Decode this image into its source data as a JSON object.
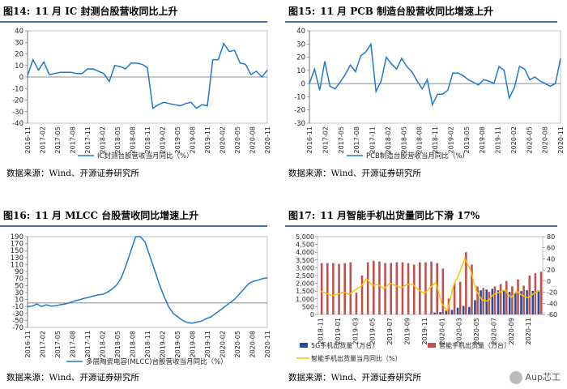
{
  "panels": [
    {
      "fig": "图14:",
      "title": "11 月 IC 封测台股营收同比上升",
      "source": "数据来源：Wind、开源证券研究所"
    },
    {
      "fig": "图15:",
      "title": "11 月 PCB 制造台股营收同比增速上升",
      "source": "数据来源：Wind、开源证券研究所"
    },
    {
      "fig": "图16:",
      "title": "11 月 MLCC 台股营收同比增速上升",
      "source": "数据来源：Wind、开源证券研究所"
    },
    {
      "fig": "图17:",
      "title": "11 月智能手机出货量同比下滑 17%",
      "source": "数据来源：Wind、开源证券研究所"
    }
  ],
  "watermark": "Aup芯工",
  "colors": {
    "blue": "#1f77d0",
    "red": "#c0504d",
    "yellow": "#ffc000",
    "navy": "#1f4e9c",
    "title_rule": "#4a6fa5"
  },
  "chart_data": [
    {
      "type": "line",
      "title": "11 月 IC 封测台股营收同比上升",
      "ylim": [
        -40,
        40
      ],
      "yticks": [
        -40,
        -30,
        -20,
        -10,
        0,
        10,
        20,
        30,
        40
      ],
      "xticks": [
        "2016-11",
        "2017-02",
        "2017-05",
        "2017-08",
        "2017-11",
        "2018-02",
        "2018-05",
        "2018-08",
        "2018-11",
        "2019-02",
        "2019-05",
        "2019-08",
        "2019-11",
        "2020-02",
        "2020-05",
        "2020-08",
        "2020-11"
      ],
      "series": [
        {
          "name": "IC封测台股营收当月同比（%）",
          "values": [
            1,
            15,
            6,
            13,
            2,
            3,
            4,
            4,
            4,
            3,
            3,
            7,
            7,
            5,
            3,
            -4,
            10,
            9,
            7,
            12,
            12,
            11,
            8,
            -27,
            -24,
            -22,
            -23,
            -24,
            -25,
            -23,
            -22,
            -27,
            -24,
            -25,
            15,
            15,
            29,
            22,
            23,
            12,
            11,
            2,
            5,
            0,
            6
          ]
        }
      ]
    },
    {
      "type": "line",
      "title": "11 月 PCB 制造台股营收同比增速上升",
      "ylim": [
        -30,
        40
      ],
      "yticks": [
        -30,
        -20,
        -10,
        0,
        10,
        20,
        30,
        40
      ],
      "xticks": [
        "2016-11",
        "2017-02",
        "2017-05",
        "2017-08",
        "2017-11",
        "2018-02",
        "2018-05",
        "2018-08",
        "2018-11",
        "2019-02",
        "2019-05",
        "2019-08",
        "2019-11",
        "2020-02",
        "2020-05",
        "2020-08",
        "2020-11"
      ],
      "series": [
        {
          "name": "PCB制造台股营收当月同比（%）",
          "values": [
            0,
            11,
            -5,
            17,
            -2,
            -4,
            1,
            7,
            14,
            9,
            21,
            24,
            30,
            -6,
            2,
            20,
            15,
            11,
            19,
            13,
            9,
            2,
            -4,
            3,
            -16,
            -8,
            -8,
            -5,
            8,
            8,
            6,
            3,
            1,
            -1,
            3,
            2,
            0,
            13,
            10,
            -11,
            -3,
            13,
            11,
            3,
            5,
            2,
            0,
            -2,
            0,
            19
          ]
        }
      ]
    },
    {
      "type": "line",
      "title": "11 月 MLCC 台股营收同比增速上升",
      "ylim": [
        -70,
        190
      ],
      "yticks": [
        -70,
        -50,
        -30,
        -10,
        10,
        30,
        50,
        70,
        90,
        110,
        130,
        150,
        170,
        190
      ],
      "xticks": [
        "2016-11",
        "2017-02",
        "2017-05",
        "2017-08",
        "2017-11",
        "2018-02",
        "2018-05",
        "2018-08",
        "2018-11",
        "2019-02",
        "2019-05",
        "2019-08",
        "2019-11",
        "2020-02",
        "2020-05",
        "2020-08",
        "2020-11"
      ],
      "series": [
        {
          "name": "多层陶瓷电容(MLCC)台股营收当月同比（%）",
          "values": [
            -10,
            -9,
            -3,
            -10,
            -5,
            -9,
            -8,
            -5,
            -3,
            1,
            6,
            9,
            13,
            16,
            20,
            23,
            25,
            31,
            40,
            52,
            74,
            110,
            150,
            190,
            190,
            175,
            135,
            95,
            55,
            20,
            -10,
            -30,
            -40,
            -50,
            -56,
            -58,
            -55,
            -52,
            -45,
            -40,
            -30,
            -20,
            -10,
            0,
            10,
            25,
            40,
            55,
            62,
            65,
            70,
            72
          ]
        }
      ]
    },
    {
      "type": "bar",
      "title": "11 月智能手机出货量同比下滑 17%",
      "ylim": [
        0,
        5000
      ],
      "y2lim": [
        -60,
        80
      ],
      "yticks": [
        0,
        500,
        1000,
        1500,
        2000,
        2500,
        3000,
        3500,
        4000,
        4500,
        5000
      ],
      "y2ticks": [
        -60,
        -40,
        -20,
        0,
        20,
        40,
        60,
        80
      ],
      "xticks": [
        "2018-11",
        "2019-01",
        "2019-03",
        "2019-05",
        "2019-07",
        "2019-09",
        "2019-11",
        "2020-01",
        "2020-03",
        "2020-05",
        "2020-07",
        "2020-09",
        "2020-11"
      ],
      "series": [
        {
          "name": "5G手机出货量（万台）",
          "axis": "left",
          "values": [
            0,
            0,
            0,
            0,
            0,
            0,
            0,
            0,
            0,
            0,
            0,
            0,
            0,
            0,
            0,
            0,
            0,
            0,
            0,
            20,
            120,
            150,
            250,
            290,
            430,
            550,
            480,
            920,
            1550,
            1600,
            1650,
            1550,
            1580,
            1450,
            1380,
            1500,
            1550,
            1510,
            1550
          ]
        },
        {
          "name": "智能手机出货量（万台）",
          "axis": "left",
          "values": [
            3300,
            3300,
            3300,
            3250,
            3300,
            3350,
            1400,
            2500,
            3350,
            3450,
            3400,
            3300,
            3300,
            3350,
            3350,
            3300,
            3200,
            3350,
            3350,
            3400,
            3300,
            2950,
            1020,
            2000,
            2100,
            4000,
            3200,
            1800,
            1700,
            1450,
            1800,
            1950,
            2150,
            1800,
            2250,
            1850,
            2500,
            2650,
            2750
          ]
        },
        {
          "name": "智能手机出货量当月同比（%）",
          "axis": "right",
          "values": [
            -18,
            -22,
            -26,
            -24,
            -20,
            -24,
            -16,
            -10,
            4,
            -8,
            -6,
            -14,
            -4,
            -8,
            -12,
            -6,
            -6,
            -16,
            -22,
            -12,
            -2,
            -40,
            -54,
            -10,
            12,
            40,
            20,
            -18,
            -34,
            -36,
            -24,
            -20,
            -16,
            -30,
            -18,
            -26,
            -30,
            -22,
            -17
          ]
        }
      ]
    }
  ]
}
